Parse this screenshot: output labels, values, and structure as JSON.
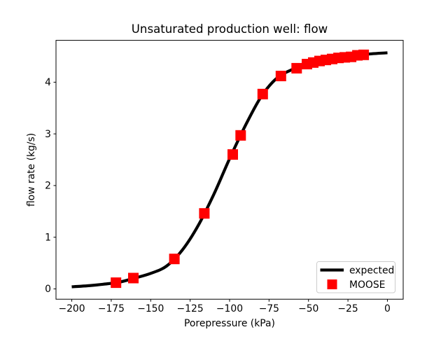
{
  "figure": {
    "background": "#ffffff",
    "accent_red": "#ff0000",
    "line_black": "#000000",
    "legend_border": "#cccccc"
  },
  "chart_data": {
    "type": "line",
    "title": "Unsaturated production well: flow",
    "xlabel": "Porepressure (kPa)",
    "ylabel": "flow rate (kg/s)",
    "xlim": [
      -210,
      10
    ],
    "ylim": [
      -0.2,
      4.81
    ],
    "grid": false,
    "x_ticks": [
      -200,
      -175,
      -150,
      -125,
      -100,
      -75,
      -50,
      -25,
      0
    ],
    "x_tick_labels": [
      "−200",
      "−175",
      "−150",
      "−125",
      "−100",
      "−75",
      "−50",
      "−25",
      "0"
    ],
    "y_ticks": [
      0,
      1,
      2,
      3,
      4
    ],
    "y_tick_labels": [
      "0",
      "1",
      "2",
      "3",
      "4"
    ],
    "legend": {
      "position": "lower right",
      "entries": [
        {
          "label": "expected",
          "type": "line",
          "color": "#000000"
        },
        {
          "label": "MOOSE",
          "type": "square",
          "color": "#ff0000"
        }
      ]
    },
    "series": [
      {
        "name": "expected",
        "type": "line",
        "color": "#000000",
        "linewidth": 4.2,
        "x": [
          -200,
          -190,
          -180,
          -170,
          -160,
          -150,
          -140,
          -130,
          -120,
          -110,
          -100,
          -90,
          -80,
          -70,
          -60,
          -50,
          -40,
          -30,
          -20,
          -10,
          0
        ],
        "y": [
          0.04,
          0.06,
          0.09,
          0.13,
          0.21,
          0.3,
          0.44,
          0.75,
          1.22,
          1.83,
          2.52,
          3.16,
          3.72,
          4.08,
          4.25,
          4.36,
          4.43,
          4.48,
          4.52,
          4.55,
          4.57
        ]
      },
      {
        "name": "MOOSE",
        "type": "scatter",
        "marker": "square",
        "color": "#ff0000",
        "markersize": 15,
        "x": [
          -172,
          -161,
          -135,
          -116,
          -98,
          -93,
          -79,
          -67.5,
          -57.5,
          -51,
          -47,
          -43,
          -39,
          -35,
          -31,
          -27,
          -23,
          -19,
          -15
        ],
        "y": [
          0.12,
          0.21,
          0.58,
          1.46,
          2.6,
          2.97,
          3.77,
          4.12,
          4.27,
          4.35,
          4.38,
          4.41,
          4.43,
          4.45,
          4.47,
          4.48,
          4.49,
          4.52,
          4.53
        ]
      }
    ]
  }
}
